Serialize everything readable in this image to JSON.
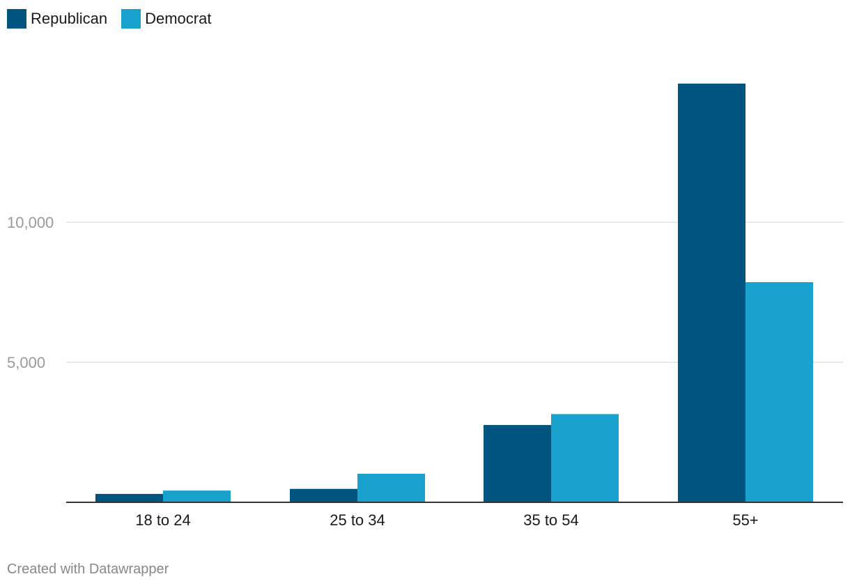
{
  "chart_data": {
    "type": "bar",
    "categories": [
      "18 to 24",
      "25 to 34",
      "35 to 54",
      "55+"
    ],
    "series": [
      {
        "name": "Republican",
        "color": "#005580",
        "values": [
          300,
          480,
          2760,
          14950
        ]
      },
      {
        "name": "Democrat",
        "color": "#18a1cd",
        "values": [
          420,
          1020,
          3150,
          7860
        ]
      }
    ],
    "yticks": [
      5000,
      10000
    ],
    "ytick_labels": [
      "5,000",
      "10,000"
    ],
    "ylim": [
      0,
      15000
    ],
    "grid": true,
    "legend_placement": "top-left"
  },
  "footer": {
    "credit": "Created with Datawrapper"
  }
}
